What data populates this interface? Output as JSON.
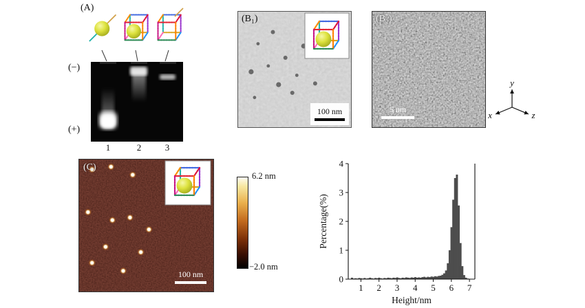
{
  "figure": {
    "panelA": {
      "label": "(A)",
      "gel": {
        "minus_label": "(−)",
        "plus_label": "(+)",
        "lane_numbers": [
          "1",
          "2",
          "3"
        ]
      }
    },
    "panelB1": {
      "label": "(B₁)",
      "scale_bar": "100 nm",
      "particles": [
        [
          0.18,
          0.28
        ],
        [
          0.31,
          0.18
        ],
        [
          0.12,
          0.52
        ],
        [
          0.27,
          0.47
        ],
        [
          0.42,
          0.4
        ],
        [
          0.36,
          0.63
        ],
        [
          0.15,
          0.74
        ],
        [
          0.48,
          0.7
        ],
        [
          0.58,
          0.3
        ],
        [
          0.52,
          0.55
        ],
        [
          0.68,
          0.62
        ]
      ]
    },
    "panelB2": {
      "label": "(B₂)",
      "scale_bar": "5 nm"
    },
    "axes3d": {
      "x_label": "x",
      "y_label": "y",
      "z_label": "z"
    },
    "panelC": {
      "label": "(C)",
      "scale_bar": "100 nm",
      "colorbar": {
        "max": "6.2 nm",
        "min": "−2.0 nm"
      },
      "particles": [
        [
          0.1,
          0.08
        ],
        [
          0.24,
          0.06
        ],
        [
          0.4,
          0.12
        ],
        [
          0.07,
          0.4
        ],
        [
          0.25,
          0.46
        ],
        [
          0.38,
          0.44
        ],
        [
          0.52,
          0.53
        ],
        [
          0.2,
          0.66
        ],
        [
          0.1,
          0.78
        ],
        [
          0.33,
          0.84
        ],
        [
          0.46,
          0.7
        ]
      ]
    }
  },
  "chart_data": {
    "type": "bar",
    "title": "",
    "xlabel": "Height/nm",
    "ylabel": "Percentage(%)",
    "xlim": [
      0.3,
      7.3
    ],
    "ylim": [
      0,
      4
    ],
    "xticks": [
      1,
      2,
      3,
      4,
      5,
      6,
      7
    ],
    "yticks": [
      0,
      1,
      2,
      3,
      4
    ],
    "bin_width": 0.1,
    "peak_height_nm": 6.3,
    "peak_percentage": 3.62,
    "x": [
      0.5,
      0.6,
      0.7,
      0.8,
      0.9,
      1.0,
      1.1,
      1.2,
      1.3,
      1.4,
      1.5,
      1.6,
      1.7,
      1.8,
      1.9,
      2.0,
      2.1,
      2.2,
      2.3,
      2.4,
      2.5,
      2.6,
      2.7,
      2.8,
      2.9,
      3.0,
      3.1,
      3.2,
      3.3,
      3.4,
      3.5,
      3.6,
      3.7,
      3.8,
      3.9,
      4.0,
      4.1,
      4.2,
      4.3,
      4.4,
      4.5,
      4.6,
      4.7,
      4.8,
      4.9,
      5.0,
      5.1,
      5.2,
      5.3,
      5.4,
      5.5,
      5.6,
      5.7,
      5.8,
      5.9,
      6.0,
      6.1,
      6.2,
      6.3,
      6.4,
      6.5,
      6.6,
      6.7,
      6.8,
      6.9,
      7.0
    ],
    "values": [
      0.05,
      0.02,
      0.03,
      0.02,
      0.04,
      0.03,
      0.02,
      0.04,
      0.02,
      0.03,
      0.05,
      0.03,
      0.02,
      0.04,
      0.03,
      0.05,
      0.03,
      0.02,
      0.04,
      0.03,
      0.05,
      0.04,
      0.03,
      0.05,
      0.04,
      0.06,
      0.04,
      0.03,
      0.05,
      0.04,
      0.06,
      0.05,
      0.04,
      0.06,
      0.05,
      0.07,
      0.05,
      0.06,
      0.05,
      0.07,
      0.08,
      0.06,
      0.08,
      0.07,
      0.09,
      0.08,
      0.1,
      0.09,
      0.11,
      0.12,
      0.15,
      0.2,
      0.3,
      0.55,
      1.0,
      1.8,
      2.75,
      3.5,
      3.62,
      2.55,
      1.25,
      0.45,
      0.14,
      0.05,
      0.02,
      0.01
    ]
  }
}
